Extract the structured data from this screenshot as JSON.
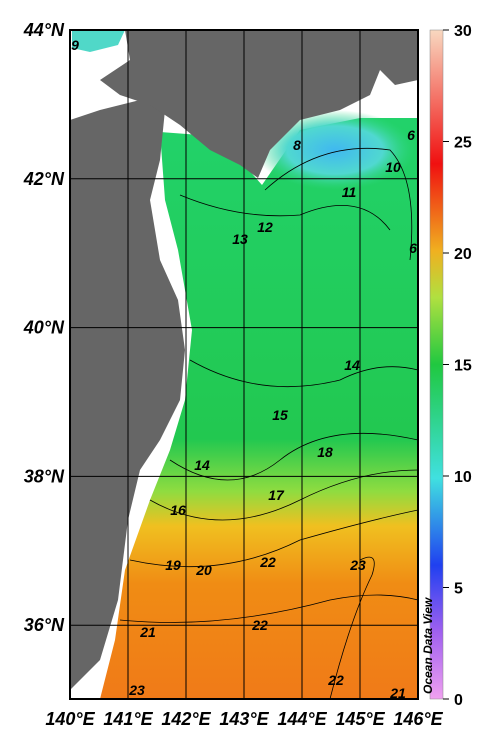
{
  "map": {
    "lat_labels": [
      "44°N",
      "42°N",
      "40°N",
      "38°N",
      "36°N"
    ],
    "lon_labels": [
      "140°E",
      "141°E",
      "142°E",
      "143°E",
      "144°E",
      "145°E",
      "146°E"
    ],
    "colorbar": {
      "lim": [
        0,
        30
      ],
      "ticks": [
        0,
        5,
        10,
        15,
        20,
        25,
        30
      ]
    },
    "contour_labels": [
      "9",
      "8",
      "6",
      "10",
      "11",
      "12",
      "13",
      "6",
      "14",
      "15",
      "18",
      "14",
      "17",
      "16",
      "19",
      "20",
      "22",
      "23",
      "21",
      "22",
      "22",
      "23",
      "21"
    ],
    "watermark": "Ocean Data View"
  }
}
